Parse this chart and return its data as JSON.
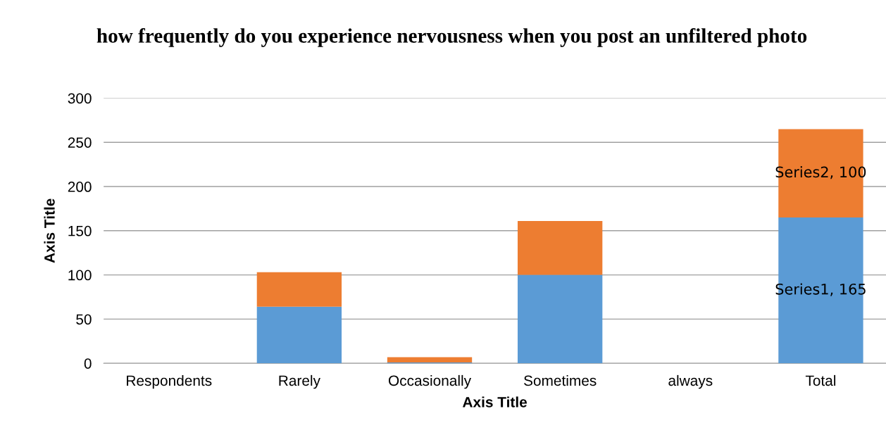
{
  "chart_data": {
    "type": "bar",
    "stacked": true,
    "title": "how frequently do you experience nervousness when you post an unfiltered photo",
    "xlabel": "Axis Title",
    "ylabel": "Axis Title",
    "categories": [
      "Respondents",
      "Rarely",
      "Occasionally",
      "Sometimes",
      "always",
      "Total"
    ],
    "series": [
      {
        "color": "#5b9bd5",
        "values": [
          0,
          64,
          1,
          100,
          0,
          165
        ],
        "value_labels": [
          null,
          null,
          null,
          null,
          null,
          "Series1, 165"
        ]
      },
      {
        "color": "#ed7d31",
        "values": [
          0,
          39,
          6,
          61,
          0,
          100
        ],
        "value_labels": [
          null,
          null,
          null,
          null,
          null,
          "Series2, 100"
        ]
      }
    ],
    "ylim": [
      0,
      300
    ],
    "yticks": [
      0,
      50,
      100,
      150,
      200,
      250,
      300
    ],
    "grid": "y",
    "legend": false
  }
}
